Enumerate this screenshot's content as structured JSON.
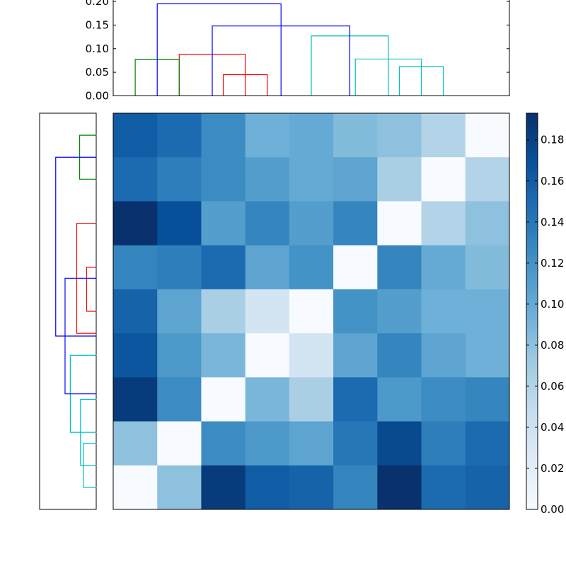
{
  "chart_data": [
    {
      "type": "heatmap",
      "title": "",
      "xlabel": "",
      "ylabel": "",
      "colormap": "Blues",
      "rows": 9,
      "cols": 9,
      "values": [
        [
          0.16,
          0.15,
          0.125,
          0.095,
          0.1,
          0.085,
          0.08,
          0.06,
          0.0
        ],
        [
          0.15,
          0.135,
          0.125,
          0.11,
          0.1,
          0.105,
          0.065,
          0.0,
          0.06
        ],
        [
          0.192,
          0.17,
          0.11,
          0.13,
          0.11,
          0.13,
          0.0,
          0.06,
          0.08
        ],
        [
          0.13,
          0.135,
          0.15,
          0.105,
          0.12,
          0.0,
          0.13,
          0.1,
          0.085
        ],
        [
          0.155,
          0.105,
          0.065,
          0.035,
          0.0,
          0.12,
          0.11,
          0.095,
          0.095
        ],
        [
          0.165,
          0.115,
          0.09,
          0.0,
          0.035,
          0.105,
          0.13,
          0.105,
          0.095
        ],
        [
          0.185,
          0.125,
          0.0,
          0.09,
          0.065,
          0.15,
          0.115,
          0.125,
          0.13
        ],
        [
          0.08,
          0.0,
          0.125,
          0.115,
          0.105,
          0.14,
          0.175,
          0.135,
          0.15
        ],
        [
          0.0,
          0.08,
          0.185,
          0.16,
          0.155,
          0.13,
          0.192,
          0.15,
          0.155
        ]
      ],
      "vmin": 0.0,
      "vmax": 0.193,
      "colorbar": {
        "ticks": [
          0.0,
          0.02,
          0.04,
          0.06,
          0.08,
          0.1,
          0.12,
          0.14,
          0.16,
          0.18
        ],
        "tick_labels": [
          "0.00",
          "0.02",
          "0.04",
          "0.06",
          "0.08",
          "0.10",
          "0.12",
          "0.14",
          "0.16",
          "0.18"
        ]
      }
    },
    {
      "type": "dendrogram",
      "orientation": "top",
      "ylim": [
        0,
        0.2
      ],
      "yticks": [
        0.0,
        0.05,
        0.1,
        0.15,
        0.2
      ],
      "ytick_labels": [
        "0.00",
        "0.05",
        "0.10",
        "0.15",
        "0.20"
      ],
      "leaf_count": 9,
      "links": [
        {
          "left": 6.5,
          "right": 7.5,
          "height": 0.062,
          "color": "#00BFBF"
        },
        {
          "left": 5.5,
          "right": 7.0,
          "height": 0.078,
          "color": "#00BFBF"
        },
        {
          "left": 4.5,
          "right": 6.25,
          "height": 0.127,
          "color": "#00BFBF"
        },
        {
          "left": 2.5,
          "right": 3.5,
          "height": 0.045,
          "color": "#FF0000"
        },
        {
          "left": 1.5,
          "right": 3.0,
          "height": 0.088,
          "color": "#FF0000"
        },
        {
          "left": 2.25,
          "right": 5.375,
          "height": 0.148,
          "color": "#0000FF"
        },
        {
          "left": 0.5,
          "right": 1.5,
          "height": 0.077,
          "color": "#008000"
        },
        {
          "left": 1.0,
          "right": 3.8125,
          "height": 0.195,
          "color": "#0000FF"
        }
      ]
    },
    {
      "type": "dendrogram",
      "orientation": "left",
      "xlim": [
        0,
        0.2
      ],
      "leaf_count": 9,
      "links": [
        {
          "left": 0.5,
          "right": 1.5,
          "height": 0.045,
          "color": "#00BFBF"
        },
        {
          "left": 1.0,
          "right": 2.5,
          "height": 0.055,
          "color": "#00BFBF"
        },
        {
          "left": 1.75,
          "right": 3.5,
          "height": 0.09,
          "color": "#00BFBF"
        },
        {
          "left": 4.5,
          "right": 5.5,
          "height": 0.034,
          "color": "#FF0000"
        },
        {
          "left": 4.0,
          "right": 6.5,
          "height": 0.068,
          "color": "#FF0000"
        },
        {
          "left": 2.625,
          "right": 5.25,
          "height": 0.108,
          "color": "#0000FF"
        },
        {
          "left": 7.5,
          "right": 8.5,
          "height": 0.058,
          "color": "#008000"
        },
        {
          "left": 3.9375,
          "right": 8.0,
          "height": 0.14,
          "color": "#0000FF"
        }
      ]
    }
  ]
}
